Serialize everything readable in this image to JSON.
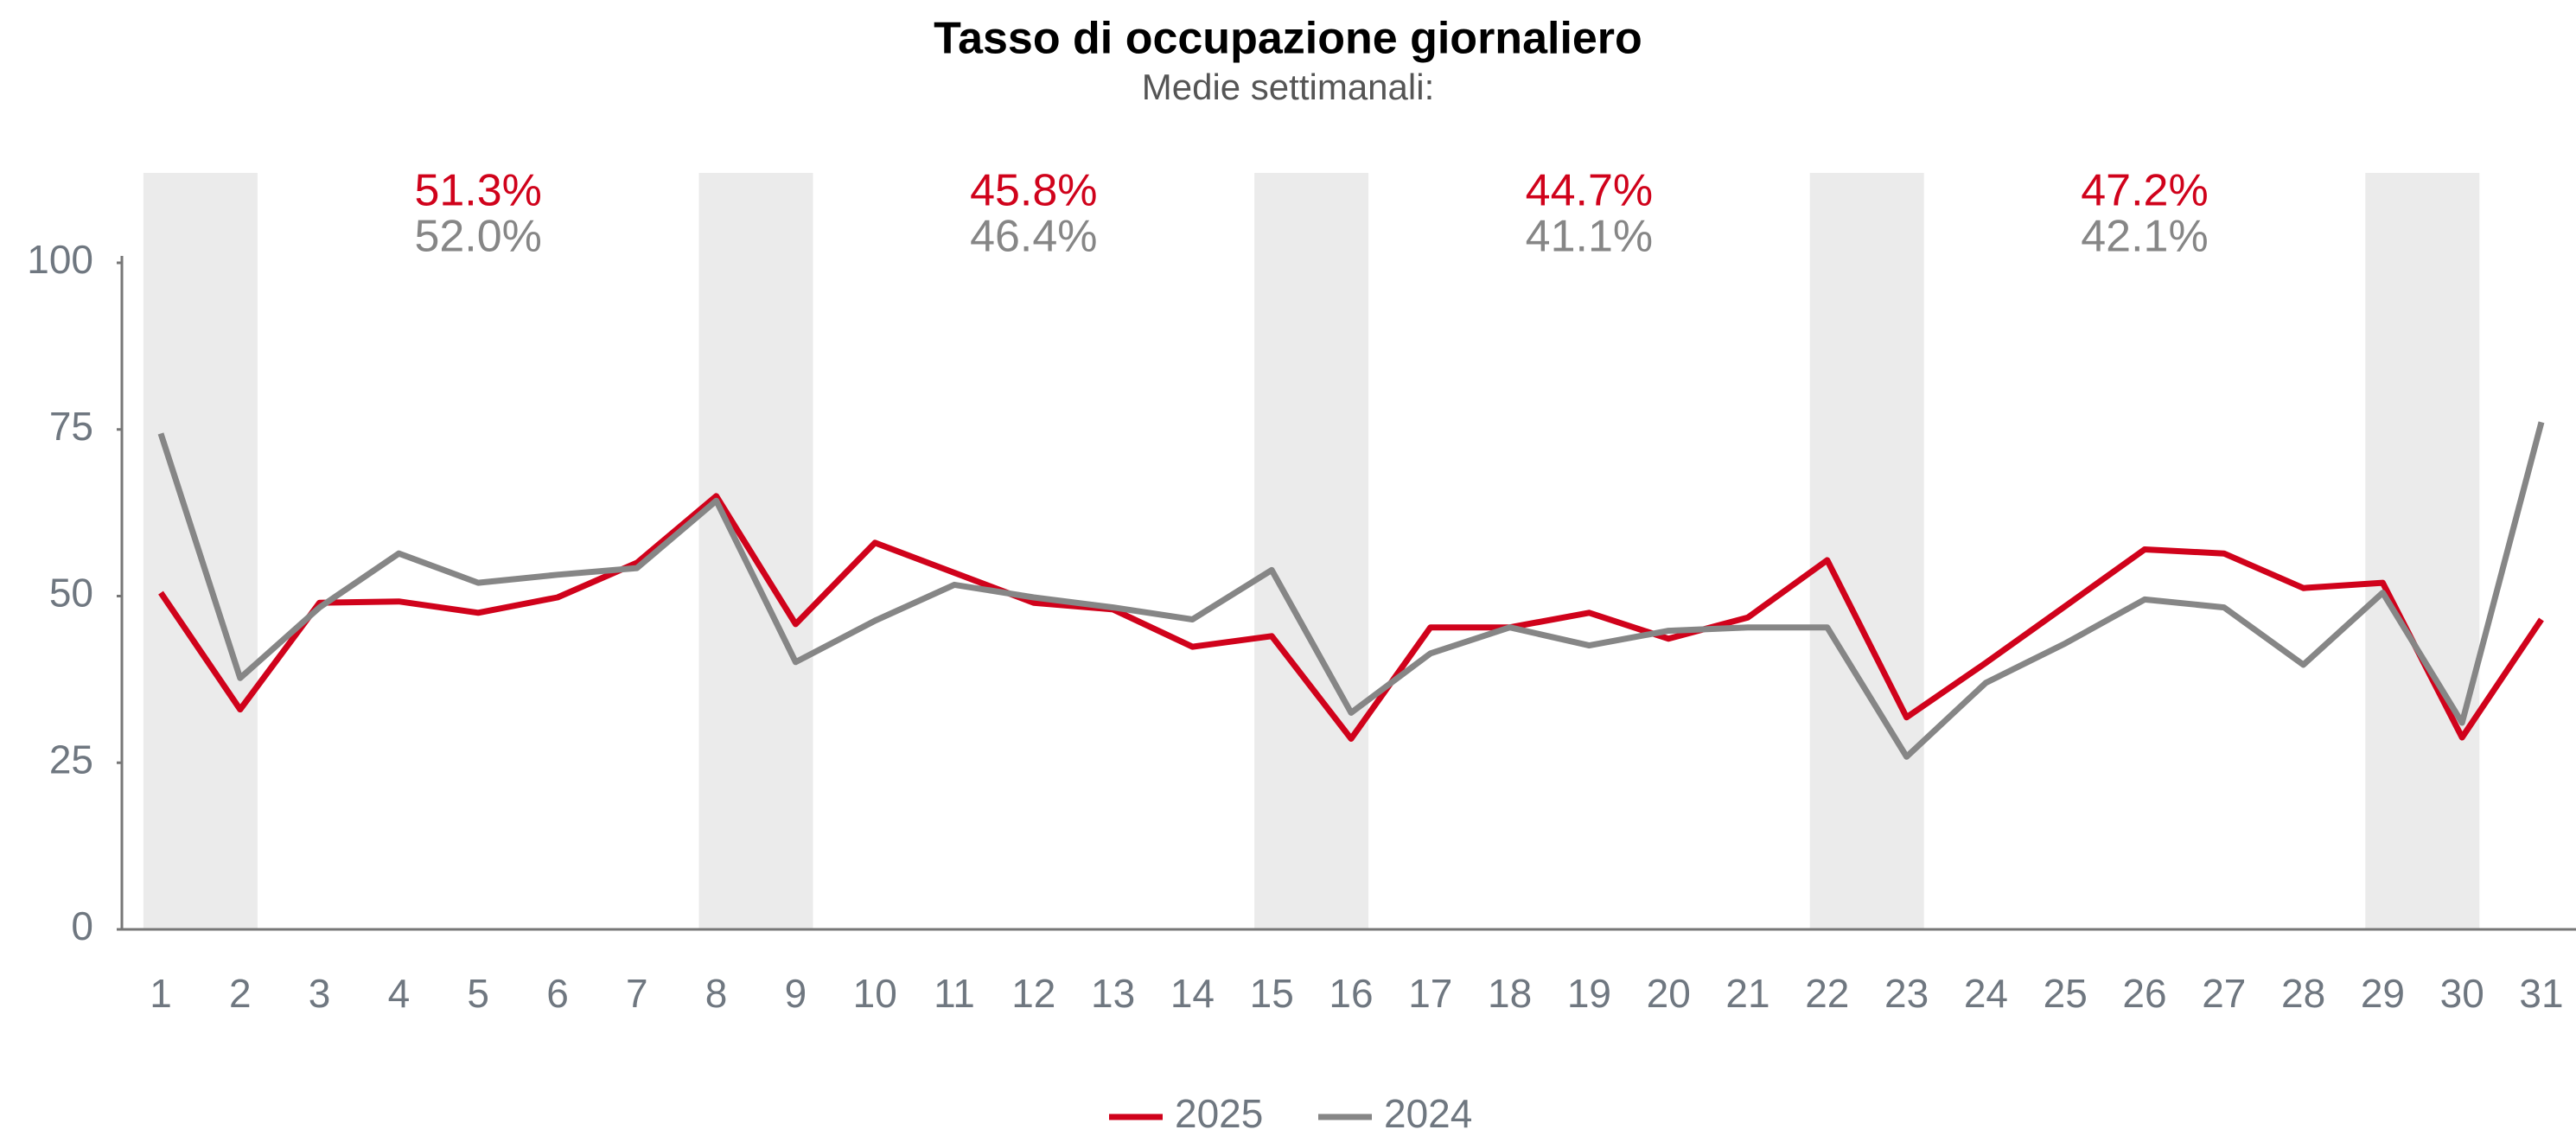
{
  "chart_data": {
    "type": "line",
    "title": "Tasso di occupazione giornaliero",
    "subtitle": "Medie settimanali:",
    "categories": [
      "1",
      "2",
      "3",
      "4",
      "5",
      "6",
      "7",
      "8",
      "9",
      "10",
      "11",
      "12",
      "13",
      "14",
      "15",
      "16",
      "17",
      "18",
      "19",
      "20",
      "21",
      "22",
      "23",
      "24",
      "25",
      "26",
      "27",
      "28",
      "29",
      "30",
      "31"
    ],
    "series": [
      {
        "name": "2025",
        "color": "#d0021b",
        "values": [
          50.5,
          33,
          49,
          49.2,
          47.5,
          49.8,
          55,
          65,
          45.8,
          58,
          53.5,
          49,
          48,
          42.4,
          44,
          28.6,
          45.3,
          45.3,
          47.5,
          43.6,
          46.8,
          55.4,
          31.8,
          40,
          48.5,
          57,
          56.4,
          51.2,
          52,
          28.8,
          46.5
        ],
        "weekly_averages": [
          "51.3%",
          "45.8%",
          "44.7%",
          "47.2%"
        ]
      },
      {
        "name": "2024",
        "color": "#868686",
        "values": [
          74.4,
          37.7,
          48.3,
          56.4,
          52,
          53.2,
          54.2,
          64.3,
          40.1,
          46.3,
          51.7,
          49.8,
          48.3,
          46.5,
          53.9,
          32.5,
          41.4,
          45.3,
          42.6,
          44.8,
          45.3,
          45.3,
          25.9,
          37,
          42.9,
          49.5,
          48.3,
          39.7,
          50.5,
          31,
          76.1
        ],
        "weekly_averages": [
          "52.0%",
          "46.4%",
          "41.1%",
          "42.1%"
        ]
      }
    ],
    "ylim": [
      0,
      100
    ],
    "yticks": [
      0,
      25,
      50,
      75,
      100
    ],
    "grid": false
  }
}
